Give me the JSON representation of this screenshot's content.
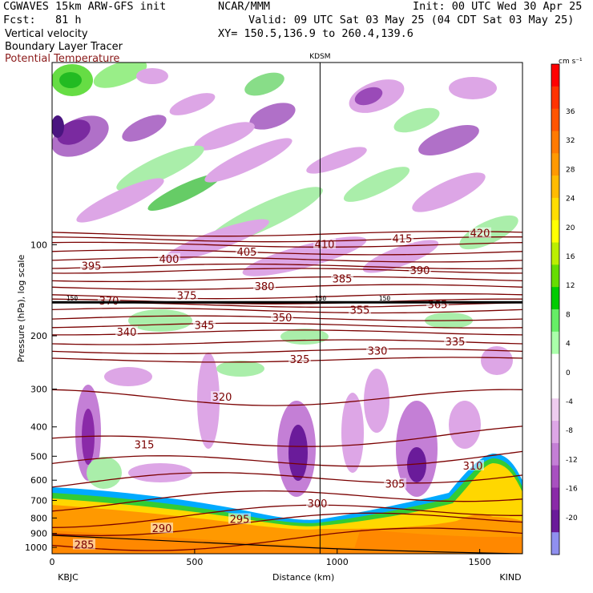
{
  "header": {
    "model_line": "CGWAVES 15km ARW-GFS init",
    "org": "NCAR/MMM",
    "init": "Init: 00 UTC Wed 30 Apr 25",
    "fcst": "Fcst:   81 h",
    "valid": "Valid: 09 UTC Sat 03 May 25 (04 CDT Sat 03 May 25)",
    "field1": "Vertical velocity",
    "field2": "Boundary Layer Tracer",
    "field3": "Potential Temperature",
    "xy": "XY= 150.5,136.9 to 260.4,139.6"
  },
  "chart_data": {
    "type": "heatmap",
    "title": "Vertical velocity / Boundary Layer Tracer / Potential Temperature cross-section",
    "xlabel": "Distance (km)",
    "ylabel": "Pressure (hPa), log scale",
    "x_ticks": [
      0,
      500,
      1000,
      1500
    ],
    "x_range": [
      0,
      1650
    ],
    "y_ticks": [
      100,
      200,
      300,
      400,
      500,
      600,
      700,
      800,
      900,
      1000
    ],
    "y_range": [
      1050,
      25
    ],
    "y_scale": "log",
    "start_station": "KBJC",
    "end_station": "KIND",
    "marker_station": "KDSM",
    "marker_x": 940,
    "colorbar": {
      "units": "cm s⁻¹",
      "labels": [
        "36",
        "32",
        "28",
        "24",
        "20",
        "16",
        "12",
        "8",
        "4",
        "0",
        "-4",
        "-8",
        "-12",
        "-16",
        "-20"
      ],
      "colors": [
        "#ff0000",
        "#ff3300",
        "#ff5500",
        "#ff7a00",
        "#ff9900",
        "#ffbb00",
        "#ffdd00",
        "#ffff00",
        "#bbee00",
        "#66dd00",
        "#00cc00",
        "#66ee66",
        "#aaffaa",
        "#ffffff",
        "#ffffff",
        "#eeccee",
        "#dda6e6",
        "#c47fd6",
        "#a850c0",
        "#8a2aa8",
        "#6a1b9a",
        "#9090f0"
      ]
    },
    "theta_contours": [
      {
        "label": "285",
        "pressure": 985
      },
      {
        "label": "290",
        "pressure": 870
      },
      {
        "label": "295",
        "pressure": 810
      },
      {
        "label": "300",
        "pressure": 720
      },
      {
        "label": "305",
        "pressure": 620
      },
      {
        "label": "310",
        "pressure": 540
      },
      {
        "label": "315",
        "pressure": 460
      },
      {
        "label": "320",
        "pressure": 320
      },
      {
        "label": "325",
        "pressure": 240
      },
      {
        "label": "330",
        "pressure": 225
      },
      {
        "label": "335",
        "pressure": 210
      },
      {
        "label": "340",
        "pressure": 195
      },
      {
        "label": "345",
        "pressure": 185
      },
      {
        "label": "350",
        "pressure": 175
      },
      {
        "label": "355",
        "pressure": 165
      },
      {
        "label": "365",
        "pressure": 158
      },
      {
        "label": "370",
        "pressure": 154
      },
      {
        "label": "375",
        "pressure": 148
      },
      {
        "label": "380",
        "pressure": 138
      },
      {
        "label": "385",
        "pressure": 130
      },
      {
        "label": "390",
        "pressure": 122
      },
      {
        "label": "395",
        "pressure": 118
      },
      {
        "label": "400",
        "pressure": 112
      },
      {
        "label": "405",
        "pressure": 106
      },
      {
        "label": "410",
        "pressure": 100
      },
      {
        "label": "415",
        "pressure": 96
      },
      {
        "label": "420",
        "pressure": 92
      }
    ],
    "pv_label": "150"
  }
}
